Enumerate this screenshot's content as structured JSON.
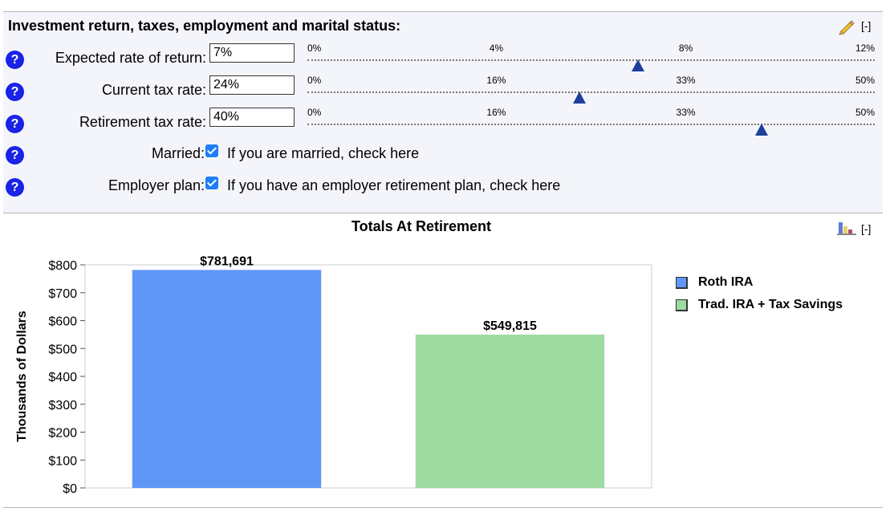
{
  "section": {
    "title": "Investment return, taxes, employment and marital status:",
    "collapse_label": "[-]"
  },
  "rows": [
    {
      "label": "Expected rate of return:",
      "value": "7%",
      "ticks": [
        "0%",
        "4%",
        "8%",
        "12%"
      ],
      "slider_max": 12,
      "slider_value": 7
    },
    {
      "label": "Current tax rate:",
      "value": "24%",
      "ticks": [
        "0%",
        "16%",
        "33%",
        "50%"
      ],
      "slider_max": 50,
      "slider_value": 24
    },
    {
      "label": "Retirement tax rate:",
      "value": "40%",
      "ticks": [
        "0%",
        "16%",
        "33%",
        "50%"
      ],
      "slider_max": 50,
      "slider_value": 40
    }
  ],
  "checks": [
    {
      "label": "Married:",
      "checked": true,
      "text": "If you are married, check here"
    },
    {
      "label": "Employer plan:",
      "checked": true,
      "text": "If you have an employer retirement plan, check here"
    }
  ],
  "help_symbol": "?",
  "colors": {
    "help": "#1a23e6",
    "thumb": "#1d3f9a",
    "checkbox": "#1e7dfa"
  },
  "chart": {
    "collapse_label": "[-]"
  },
  "chart_data": {
    "type": "bar",
    "title": "Totals At Retirement",
    "ylabel": "Thousands of Dollars",
    "ylim": [
      0,
      800
    ],
    "yticks": [
      "$0",
      "$100",
      "$200",
      "$300",
      "$400",
      "$500",
      "$600",
      "$700",
      "$800"
    ],
    "categories": [
      "Roth IRA",
      "Trad. IRA + Tax Savings"
    ],
    "values": [
      781.691,
      549.815
    ],
    "data_labels": [
      "$781,691",
      "$549,815"
    ],
    "colors": [
      "#5e97f6",
      "#9ddba0"
    ],
    "legend": "right",
    "grid": false
  }
}
